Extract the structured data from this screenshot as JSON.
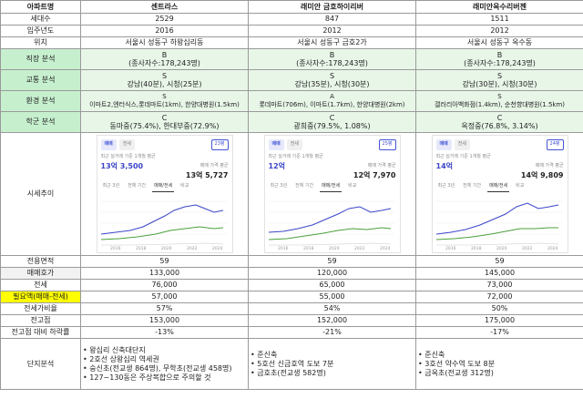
{
  "header": {
    "label": "아파트명",
    "apts": [
      "센트라스",
      "래미안 금호하이리버",
      "래미안옥수리버젠"
    ]
  },
  "rows_top": [
    {
      "label": "세대수",
      "vals": [
        "2529",
        "847",
        "1511"
      ]
    },
    {
      "label": "입주년도",
      "vals": [
        "2016",
        "2012",
        "2012"
      ]
    },
    {
      "label": "위치",
      "vals": [
        "서울시 성동구 하왕십리동",
        "서울시 성동구 금호2가",
        "서울시 성동구 옥수동"
      ]
    }
  ],
  "rows_green": [
    {
      "label": "직장 분석",
      "grades": [
        "B",
        "B",
        "B"
      ],
      "details": [
        "(종사자수:178,243명)",
        "(종사자수:178,243명)",
        "(종사자수:178,243명)"
      ]
    },
    {
      "label": "교통 분석",
      "grades": [
        "S",
        "S",
        "S"
      ],
      "details": [
        "강남(40분), 시청(25분)",
        "강남(35분), 시청(30분)",
        "강남(30분), 시청(30분)"
      ]
    },
    {
      "label": "환경 분석",
      "grades": [
        "S",
        "A",
        "S"
      ],
      "details": [
        "이마트2,엔터식스,롯데마트(1km), 한양대병원(1.5km)",
        "롯데마트(706m), 이마트(1.7km), 한양대병원(2km)",
        "갤러리아백화점(1.4km), 순천향대병원(1.5km)"
      ]
    },
    {
      "label": "학군 분석",
      "grades": [
        "C",
        "C",
        "C"
      ],
      "details": [
        "동마중(75.4%), 한대부중(72.9%)",
        "광희중(79.5%, 1.08%)",
        "옥정중(76.8%, 3.14%)"
      ]
    }
  ],
  "price_chart": {
    "label": "시세추이",
    "tab_trade": "매매",
    "tab_rent": "전세",
    "note": "최근 실거래 기준 1개월 평균",
    "trade_label": "매매 가격 평균",
    "periods": [
      "최근 3년",
      "전체 기간"
    ],
    "segments": [
      "매매/전세",
      "비교"
    ],
    "cards": [
      {
        "pyeong": "23평",
        "current": "13억 3,500",
        "avg": "13억 5,727"
      },
      {
        "pyeong": "25평",
        "current": "12억",
        "avg": "12억 7,970"
      },
      {
        "pyeong": "24평",
        "current": "14억",
        "avg": "14억 9,809"
      }
    ],
    "years": [
      "2016",
      "2018",
      "2020",
      "2022",
      "2024"
    ],
    "colors": {
      "trade": "#3b45c8",
      "rent": "#4aa03a",
      "tab": "#4253d4"
    }
  },
  "rows_bottom": [
    {
      "label": "전용면적",
      "vals": [
        "59",
        "59",
        "59"
      ],
      "style": "plain"
    },
    {
      "label": "매매호가",
      "vals": [
        "133,000",
        "120,000",
        "145,000"
      ],
      "style": "gray"
    },
    {
      "label": "전세",
      "vals": [
        "76,000",
        "65,000",
        "73,000"
      ],
      "style": "plain"
    },
    {
      "label": "필요액(매매-전세)",
      "vals": [
        "57,000",
        "55,000",
        "72,000"
      ],
      "style": "yellow"
    },
    {
      "label": "전세가비율",
      "vals": [
        "57%",
        "54%",
        "50%"
      ],
      "style": "plain"
    },
    {
      "label": "전고점",
      "vals": [
        "153,000",
        "152,000",
        "175,000"
      ],
      "style": "plain"
    },
    {
      "label": "전고점 대비 하락률",
      "vals": [
        "-13%",
        "-21%",
        "-17%"
      ],
      "style": "plain"
    }
  ],
  "complex": {
    "label": "단지분석",
    "items": [
      [
        "• 왕십리 신축대단지",
        "• 2호선 상왕십리 역세권",
        "• 숭신초(전교생 864명), 무학초(전교생 458명)",
        "• 127~130동은 주상복합으로 주의할 것"
      ],
      [
        "• 준신축",
        "• 5호선 신금호역 도보 7분",
        "• 금호초(전교생 582명)"
      ],
      [
        "• 준신축",
        "• 3호선 약수역 도보 8분",
        "• 금옥초(전교생 312명)"
      ]
    ]
  }
}
